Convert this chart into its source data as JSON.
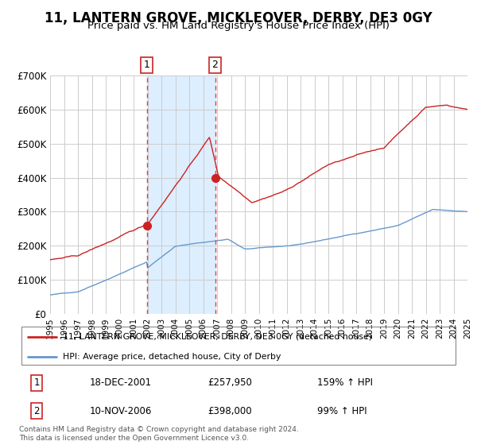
{
  "title": "11, LANTERN GROVE, MICKLEOVER, DERBY, DE3 0GY",
  "subtitle": "Price paid vs. HM Land Registry's House Price Index (HPI)",
  "title_fontsize": 12,
  "subtitle_fontsize": 9.5,
  "background_color": "#ffffff",
  "grid_color": "#cccccc",
  "hpi_color": "#6699cc",
  "price_color": "#cc2222",
  "sale1_date": 2001.96,
  "sale1_price": 257950,
  "sale2_date": 2006.86,
  "sale2_price": 398000,
  "xlim": [
    1995,
    2025
  ],
  "ylim": [
    0,
    700000
  ],
  "yticks": [
    0,
    100000,
    200000,
    300000,
    400000,
    500000,
    600000,
    700000
  ],
  "ytick_labels": [
    "£0",
    "£100K",
    "£200K",
    "£300K",
    "£400K",
    "£500K",
    "£600K",
    "£700K"
  ],
  "legend_entries": [
    "11, LANTERN GROVE, MICKLEOVER, DERBY, DE3 0GY (detached house)",
    "HPI: Average price, detached house, City of Derby"
  ],
  "table_rows": [
    [
      "1",
      "18-DEC-2001",
      "£257,950",
      "159% ↑ HPI"
    ],
    [
      "2",
      "10-NOV-2006",
      "£398,000",
      "99% ↑ HPI"
    ]
  ],
  "footnote": "Contains HM Land Registry data © Crown copyright and database right 2024.\nThis data is licensed under the Open Government Licence v3.0.",
  "shade_color": "#ddeeff",
  "dashed_line_color": "#dd4444"
}
